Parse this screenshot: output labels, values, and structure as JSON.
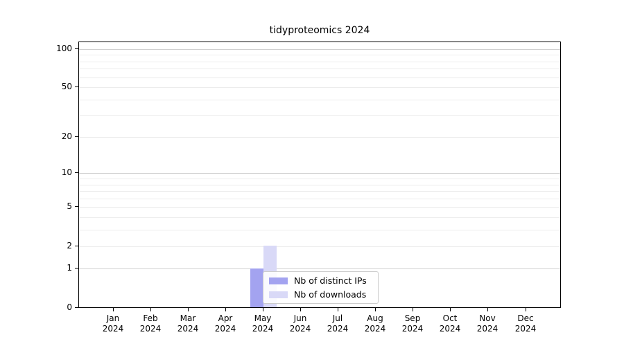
{
  "chart_data": {
    "type": "bar",
    "title": "tidyproteomics 2024",
    "categories": [
      "Jan 2024",
      "Feb 2024",
      "Mar 2024",
      "Apr 2024",
      "May 2024",
      "Jun 2024",
      "Jul 2024",
      "Aug 2024",
      "Sep 2024",
      "Oct 2024",
      "Nov 2024",
      "Dec 2024"
    ],
    "series": [
      {
        "name": "Nb of distinct IPs",
        "color": "#a3a3f0",
        "values": [
          0,
          0,
          0,
          0,
          1,
          0,
          0,
          0,
          0,
          0,
          0,
          0
        ]
      },
      {
        "name": "Nb of downloads",
        "color": "#d9d9f7",
        "values": [
          0,
          0,
          0,
          0,
          2,
          0,
          0,
          0,
          0,
          0,
          0,
          0
        ]
      }
    ],
    "xlabel": "",
    "ylabel": "",
    "yscale": "log1p",
    "ylim": [
      0,
      113
    ],
    "yticks": [
      0,
      1,
      2,
      5,
      10,
      20,
      50,
      100
    ],
    "gridlines": {
      "major": [
        1,
        10,
        100
      ],
      "minor": [
        2,
        3,
        4,
        5,
        6,
        7,
        8,
        9,
        20,
        30,
        40,
        50,
        60,
        70,
        80,
        90
      ],
      "major_color": "#d0d0d0",
      "minor_color": "#ececec"
    },
    "legend": {
      "position": "lower-center",
      "entries": [
        "Nb of distinct IPs",
        "Nb of downloads"
      ]
    }
  }
}
